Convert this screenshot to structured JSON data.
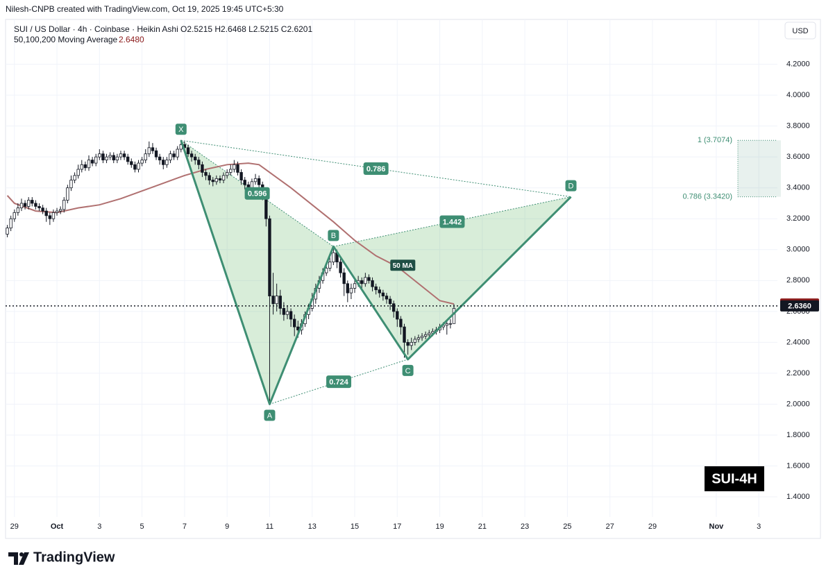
{
  "chart_data": {
    "type": "candlestick",
    "credit": "Nilesh-CNPB created with TradingView.com, Oct 19, 2025 19:45 UTC+5:30",
    "title": "SUI / US Dollar · 4h · Coinbase · Heikin Ashi",
    "ohlc_label": "O2.5215  H2.6468  L2.5215  C2.6201",
    "currency": "USD",
    "watermark": "SUI-4H",
    "branding": "TradingView",
    "up_color": "#ffffff",
    "down_color": "#131722",
    "wick_color": "#131722",
    "grid": true,
    "xlim": [
      "Sep 28 14:00",
      "Nov 3 21:00"
    ],
    "xticks": [
      {
        "value": "Sep 29 00:00",
        "label": "29"
      },
      {
        "value": "Oct 1 00:00",
        "label": "Oct"
      },
      {
        "value": "Oct 3 00:00",
        "label": "3"
      },
      {
        "value": "Oct 5 00:00",
        "label": "5"
      },
      {
        "value": "Oct 7 00:00",
        "label": "7"
      },
      {
        "value": "Oct 9 00:00",
        "label": "9"
      },
      {
        "value": "Oct 11 00:00",
        "label": "11"
      },
      {
        "value": "Oct 13 00:00",
        "label": "13"
      },
      {
        "value": "Oct 15 00:00",
        "label": "15"
      },
      {
        "value": "Oct 17 00:00",
        "label": "17"
      },
      {
        "value": "Oct 19 00:00",
        "label": "19"
      },
      {
        "value": "Oct 21 00:00",
        "label": "21"
      },
      {
        "value": "Oct 23 00:00",
        "label": "23"
      },
      {
        "value": "Oct 25 00:00",
        "label": "25"
      },
      {
        "value": "Oct 27 00:00",
        "label": "27"
      },
      {
        "value": "Oct 29 00:00",
        "label": "29"
      },
      {
        "value": "Nov 1 00:00",
        "label": "Nov"
      },
      {
        "value": "Nov 3 00:00",
        "label": "3"
      }
    ],
    "ylim": [
      1.27,
      4.49
    ],
    "yticks": [
      {
        "value": 4.2,
        "label": "4.2000"
      },
      {
        "value": 4.0,
        "label": "4.0000"
      },
      {
        "value": 3.8,
        "label": "3.8000"
      },
      {
        "value": 3.6,
        "label": "3.6000"
      },
      {
        "value": 3.4,
        "label": "3.4000"
      },
      {
        "value": 3.2,
        "label": "3.2000"
      },
      {
        "value": 3.0,
        "label": "3.0000"
      },
      {
        "value": 2.8,
        "label": "2.8000"
      },
      {
        "value": 2.6,
        "label": "2.6000"
      },
      {
        "value": 2.4,
        "label": "2.4000"
      },
      {
        "value": 2.2,
        "label": "2.2000"
      },
      {
        "value": 2.0,
        "label": "2.0000"
      },
      {
        "value": 1.8,
        "label": "1.8000"
      },
      {
        "value": 1.6,
        "label": "1.6000"
      },
      {
        "value": 1.4,
        "label": "1.4000"
      }
    ],
    "x": [
      "Sep 28 16:00",
      "Sep 28 20:00",
      "Sep 29 00:00",
      "Sep 29 04:00",
      "Sep 29 08:00",
      "Sep 29 12:00",
      "Sep 29 16:00",
      "Sep 29 20:00",
      "Sep 30 00:00",
      "Sep 30 04:00",
      "Sep 30 08:00",
      "Sep 30 12:00",
      "Sep 30 16:00",
      "Sep 30 20:00",
      "Oct 1 00:00",
      "Oct 1 04:00",
      "Oct 1 08:00",
      "Oct 1 12:00",
      "Oct 1 16:00",
      "Oct 1 20:00",
      "Oct 2 00:00",
      "Oct 2 04:00",
      "Oct 2 08:00",
      "Oct 2 12:00",
      "Oct 2 16:00",
      "Oct 2 20:00",
      "Oct 3 00:00",
      "Oct 3 04:00",
      "Oct 3 08:00",
      "Oct 3 12:00",
      "Oct 3 16:00",
      "Oct 3 20:00",
      "Oct 4 00:00",
      "Oct 4 04:00",
      "Oct 4 08:00",
      "Oct 4 12:00",
      "Oct 4 16:00",
      "Oct 4 20:00",
      "Oct 5 00:00",
      "Oct 5 04:00",
      "Oct 5 08:00",
      "Oct 5 12:00",
      "Oct 5 16:00",
      "Oct 5 20:00",
      "Oct 6 00:00",
      "Oct 6 04:00",
      "Oct 6 08:00",
      "Oct 6 12:00",
      "Oct 6 16:00",
      "Oct 6 20:00",
      "Oct 7 00:00",
      "Oct 7 04:00",
      "Oct 7 08:00",
      "Oct 7 12:00",
      "Oct 7 16:00",
      "Oct 7 20:00",
      "Oct 8 00:00",
      "Oct 8 04:00",
      "Oct 8 08:00",
      "Oct 8 12:00",
      "Oct 8 16:00",
      "Oct 8 20:00",
      "Oct 9 00:00",
      "Oct 9 04:00",
      "Oct 9 08:00",
      "Oct 9 12:00",
      "Oct 9 16:00",
      "Oct 9 20:00",
      "Oct 10 00:00",
      "Oct 10 04:00",
      "Oct 10 08:00",
      "Oct 10 12:00",
      "Oct 10 16:00",
      "Oct 10 20:00",
      "Oct 11 00:00",
      "Oct 11 04:00",
      "Oct 11 08:00",
      "Oct 11 12:00",
      "Oct 11 16:00",
      "Oct 11 20:00",
      "Oct 12 00:00",
      "Oct 12 04:00",
      "Oct 12 08:00",
      "Oct 12 12:00",
      "Oct 12 16:00",
      "Oct 12 20:00",
      "Oct 13 00:00",
      "Oct 13 04:00",
      "Oct 13 08:00",
      "Oct 13 12:00",
      "Oct 13 16:00",
      "Oct 13 20:00",
      "Oct 14 00:00",
      "Oct 14 04:00",
      "Oct 14 08:00",
      "Oct 14 12:00",
      "Oct 14 16:00",
      "Oct 14 20:00",
      "Oct 15 00:00",
      "Oct 15 04:00",
      "Oct 15 08:00",
      "Oct 15 12:00",
      "Oct 15 16:00",
      "Oct 15 20:00",
      "Oct 16 00:00",
      "Oct 16 04:00",
      "Oct 16 08:00",
      "Oct 16 12:00",
      "Oct 16 16:00",
      "Oct 16 20:00",
      "Oct 17 00:00",
      "Oct 17 04:00",
      "Oct 17 08:00",
      "Oct 17 12:00",
      "Oct 17 16:00",
      "Oct 17 20:00",
      "Oct 18 00:00",
      "Oct 18 04:00",
      "Oct 18 08:00",
      "Oct 18 12:00",
      "Oct 18 16:00",
      "Oct 18 20:00",
      "Oct 19 00:00",
      "Oct 19 04:00",
      "Oct 19 08:00",
      "Oct 19 12:00",
      "Oct 19 16:00"
    ],
    "open": [
      3.1,
      3.14,
      3.2,
      3.24,
      3.27,
      3.3,
      3.28,
      3.32,
      3.3,
      3.28,
      3.27,
      3.25,
      3.22,
      3.2,
      3.24,
      3.25,
      3.26,
      3.32,
      3.4,
      3.45,
      3.48,
      3.52,
      3.55,
      3.53,
      3.58,
      3.56,
      3.6,
      3.62,
      3.58,
      3.6,
      3.61,
      3.58,
      3.6,
      3.62,
      3.6,
      3.57,
      3.55,
      3.52,
      3.56,
      3.58,
      3.62,
      3.66,
      3.64,
      3.6,
      3.58,
      3.55,
      3.58,
      3.62,
      3.6,
      3.65,
      3.68,
      3.66,
      3.62,
      3.6,
      3.58,
      3.55,
      3.5,
      3.48,
      3.45,
      3.44,
      3.46,
      3.45,
      3.48,
      3.5,
      3.52,
      3.55,
      3.5,
      3.45,
      3.42,
      3.4,
      3.44,
      3.46,
      3.42,
      3.35,
      3.2,
      2.7,
      2.65,
      2.7,
      2.62,
      2.58,
      2.6,
      2.55,
      2.5,
      2.48,
      2.52,
      2.58,
      2.62,
      2.68,
      2.75,
      2.8,
      2.85,
      2.88,
      2.92,
      2.98,
      2.92,
      2.85,
      2.78,
      2.72,
      2.75,
      2.78,
      2.8,
      2.78,
      2.82,
      2.8,
      2.76,
      2.74,
      2.72,
      2.7,
      2.68,
      2.65,
      2.6,
      2.55,
      2.5,
      2.4,
      2.38,
      2.4,
      2.42,
      2.43,
      2.44,
      2.45,
      2.46,
      2.47,
      2.48,
      2.5,
      2.51,
      2.52,
      2.5215
    ],
    "high": [
      3.16,
      3.22,
      3.26,
      3.3,
      3.33,
      3.32,
      3.34,
      3.34,
      3.32,
      3.3,
      3.29,
      3.27,
      3.24,
      3.26,
      3.27,
      3.28,
      3.34,
      3.42,
      3.48,
      3.5,
      3.55,
      3.58,
      3.57,
      3.61,
      3.6,
      3.62,
      3.65,
      3.64,
      3.62,
      3.63,
      3.63,
      3.62,
      3.64,
      3.64,
      3.62,
      3.59,
      3.57,
      3.58,
      3.6,
      3.65,
      3.7,
      3.69,
      3.66,
      3.62,
      3.6,
      3.6,
      3.64,
      3.64,
      3.67,
      3.71,
      3.7,
      3.68,
      3.64,
      3.62,
      3.6,
      3.57,
      3.52,
      3.5,
      3.47,
      3.48,
      3.48,
      3.5,
      3.52,
      3.55,
      3.58,
      3.57,
      3.52,
      3.47,
      3.44,
      3.46,
      3.49,
      3.48,
      3.44,
      3.37,
      3.22,
      2.85,
      2.78,
      2.74,
      2.66,
      2.64,
      2.62,
      2.58,
      2.54,
      2.55,
      2.6,
      2.65,
      2.72,
      2.78,
      2.83,
      2.88,
      2.91,
      2.95,
      3.02,
      3.0,
      2.95,
      2.88,
      2.8,
      2.78,
      2.81,
      2.83,
      2.82,
      2.85,
      2.84,
      2.82,
      2.78,
      2.76,
      2.74,
      2.72,
      2.7,
      2.67,
      2.62,
      2.57,
      2.52,
      2.42,
      2.43,
      2.44,
      2.45,
      2.46,
      2.47,
      2.48,
      2.49,
      2.5,
      2.52,
      2.53,
      2.54,
      2.55,
      2.6468
    ],
    "low": [
      3.08,
      3.12,
      3.18,
      3.22,
      3.25,
      3.26,
      3.26,
      3.28,
      3.26,
      3.25,
      3.23,
      3.18,
      3.16,
      3.18,
      3.22,
      3.23,
      3.24,
      3.3,
      3.38,
      3.43,
      3.46,
      3.5,
      3.51,
      3.51,
      3.54,
      3.54,
      3.58,
      3.56,
      3.56,
      3.58,
      3.56,
      3.56,
      3.58,
      3.58,
      3.55,
      3.53,
      3.5,
      3.5,
      3.54,
      3.56,
      3.6,
      3.62,
      3.58,
      3.55,
      3.52,
      3.53,
      3.56,
      3.58,
      3.58,
      3.63,
      3.64,
      3.6,
      3.57,
      3.55,
      3.52,
      3.47,
      3.45,
      3.42,
      3.41,
      3.42,
      3.43,
      3.43,
      3.46,
      3.48,
      3.5,
      3.48,
      3.42,
      3.39,
      3.37,
      3.38,
      3.42,
      3.4,
      3.32,
      3.15,
      2.0,
      2.58,
      2.6,
      2.58,
      2.54,
      2.55,
      2.5,
      2.44,
      2.43,
      2.45,
      2.5,
      2.55,
      2.6,
      2.65,
      2.72,
      2.78,
      2.83,
      2.86,
      2.9,
      2.88,
      2.82,
      2.7,
      2.66,
      2.68,
      2.72,
      2.76,
      2.75,
      2.76,
      2.78,
      2.73,
      2.71,
      2.69,
      2.67,
      2.65,
      2.61,
      2.56,
      2.5,
      2.45,
      2.3,
      2.32,
      2.35,
      2.38,
      2.4,
      2.41,
      2.42,
      2.43,
      2.44,
      2.45,
      2.46,
      2.48,
      2.45,
      2.49,
      2.5215
    ],
    "close": [
      3.14,
      3.2,
      3.24,
      3.27,
      3.3,
      3.28,
      3.32,
      3.3,
      3.28,
      3.27,
      3.25,
      3.22,
      3.2,
      3.24,
      3.25,
      3.26,
      3.32,
      3.4,
      3.45,
      3.48,
      3.52,
      3.55,
      3.53,
      3.58,
      3.56,
      3.6,
      3.62,
      3.58,
      3.6,
      3.61,
      3.58,
      3.6,
      3.62,
      3.6,
      3.57,
      3.55,
      3.52,
      3.56,
      3.58,
      3.62,
      3.66,
      3.64,
      3.6,
      3.58,
      3.55,
      3.58,
      3.62,
      3.6,
      3.65,
      3.68,
      3.66,
      3.62,
      3.6,
      3.58,
      3.55,
      3.5,
      3.48,
      3.45,
      3.44,
      3.46,
      3.45,
      3.48,
      3.5,
      3.52,
      3.55,
      3.5,
      3.45,
      3.42,
      3.4,
      3.44,
      3.46,
      3.42,
      3.35,
      3.2,
      2.7,
      2.65,
      2.7,
      2.62,
      2.58,
      2.6,
      2.55,
      2.5,
      2.48,
      2.52,
      2.58,
      2.62,
      2.68,
      2.75,
      2.8,
      2.85,
      2.88,
      2.92,
      2.98,
      2.92,
      2.85,
      2.78,
      2.72,
      2.75,
      2.78,
      2.8,
      2.78,
      2.82,
      2.8,
      2.76,
      2.74,
      2.72,
      2.7,
      2.68,
      2.65,
      2.6,
      2.55,
      2.5,
      2.4,
      2.38,
      2.4,
      2.42,
      2.43,
      2.44,
      2.45,
      2.46,
      2.47,
      2.48,
      2.5,
      2.51,
      2.52,
      2.5215,
      2.6201
    ],
    "ma": {
      "name": "50,100,200 Moving Average",
      "label": "50 MA",
      "color": "#b07070",
      "value_label": "2.6480",
      "tag_color": "#8b1a1a",
      "x": [
        "Sep 28 16:00",
        "Sep 29 00:00",
        "Sep 30 00:00",
        "Oct 1 00:00",
        "Oct 2 00:00",
        "Oct 3 00:00",
        "Oct 4 00:00",
        "Oct 5 00:00",
        "Oct 6 00:00",
        "Oct 7 00:00",
        "Oct 8 00:00",
        "Oct 9 00:00",
        "Oct 10 00:00",
        "Oct 10 12:00",
        "Oct 11 00:00",
        "Oct 12 00:00",
        "Oct 13 00:00",
        "Oct 14 00:00",
        "Oct 15 00:00",
        "Oct 16 00:00",
        "Oct 17 00:00",
        "Oct 18 00:00",
        "Oct 19 00:00",
        "Oct 19 16:00"
      ],
      "values": [
        3.35,
        3.3,
        3.25,
        3.24,
        3.27,
        3.29,
        3.33,
        3.38,
        3.43,
        3.48,
        3.52,
        3.55,
        3.56,
        3.55,
        3.5,
        3.4,
        3.29,
        3.18,
        3.06,
        2.96,
        2.89,
        2.78,
        2.67,
        2.648
      ]
    },
    "price_line": {
      "value": 2.636,
      "label": "2.6360",
      "color": "#131722"
    },
    "pattern": {
      "color": "#3e8e73",
      "fill": "rgba(76,175,80,0.22)",
      "points": [
        {
          "label": "X",
          "x": "Oct 6 20:00",
          "y": 3.7074
        },
        {
          "label": "A",
          "x": "Oct 11 00:00",
          "y": 2.0
        },
        {
          "label": "B",
          "x": "Oct 14 00:00",
          "y": 3.02
        },
        {
          "label": "C",
          "x": "Oct 17 12:00",
          "y": 2.29
        },
        {
          "label": "D",
          "x": "Oct 25 04:00",
          "y": 3.342
        }
      ],
      "ratios": [
        0.596,
        0.786,
        1.442,
        0.724
      ]
    },
    "levels": [
      {
        "label": "1 (3.7074)",
        "value": 3.7074
      },
      {
        "label": "0.786 (3.3420)",
        "value": 3.342
      }
    ]
  }
}
